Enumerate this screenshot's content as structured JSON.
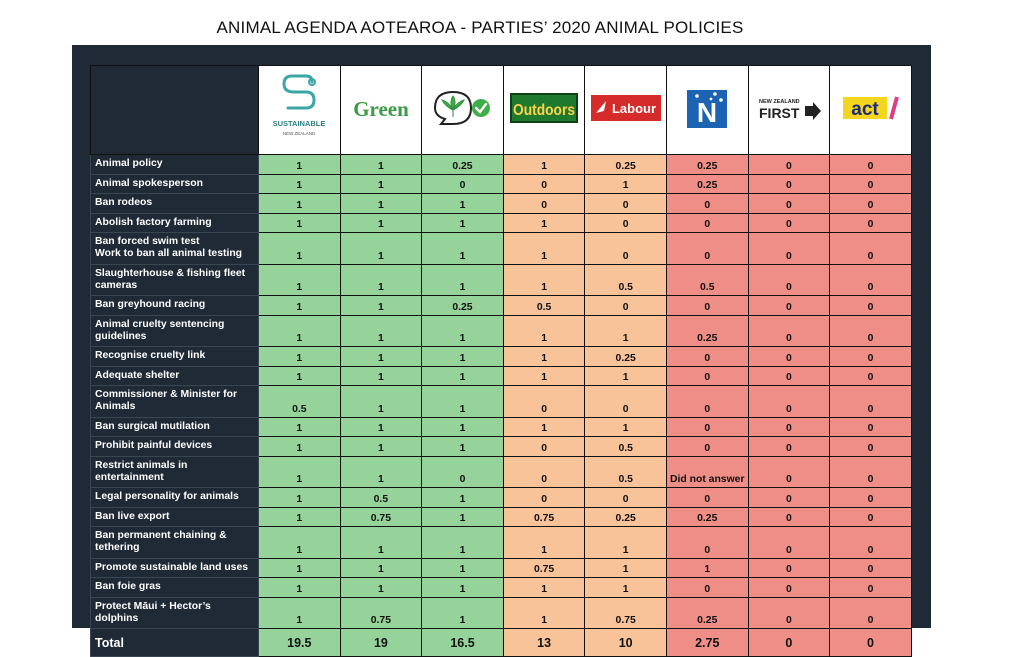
{
  "title": "ANIMAL AGENDA AOTEAROA - PARTIES’ 2020 ANIMAL POLICIES",
  "colors": {
    "background": "#1f2a36",
    "high": "#95d39a",
    "mid": "#f8c399",
    "low": "#ef8e86"
  },
  "parties": [
    {
      "logo": "sustainable-nz-logo",
      "text": "SUSTAINABLE",
      "sub": "NEW ZEALAND",
      "band": "g"
    },
    {
      "logo": "green-logo",
      "text": "Green",
      "band": "g"
    },
    {
      "logo": "cannabis-logo",
      "text": "",
      "band": "g"
    },
    {
      "logo": "outdoors-logo",
      "text": "Outdoors",
      "band": "o"
    },
    {
      "logo": "labour-logo",
      "text": "Labour",
      "band": "o"
    },
    {
      "logo": "national-logo",
      "text": "N",
      "band": "r"
    },
    {
      "logo": "nz-first-logo",
      "text": "FIRST",
      "sub": "NEW ZEALAND",
      "band": "r"
    },
    {
      "logo": "act-logo",
      "text": "act",
      "band": "r"
    }
  ],
  "chart_data": {
    "type": "table",
    "title": "ANIMAL AGENDA AOTEAROA - PARTIES’ 2020 ANIMAL POLICIES",
    "rows": [
      {
        "label": "Animal policy",
        "values": [
          "1",
          "1",
          "0.25",
          "1",
          "0.25",
          "0.25",
          "0",
          "0"
        ]
      },
      {
        "label": "Animal spokesperson",
        "values": [
          "1",
          "1",
          "0",
          "0",
          "1",
          "0.25",
          "0",
          "0"
        ]
      },
      {
        "label": "Ban rodeos",
        "values": [
          "1",
          "1",
          "1",
          "0",
          "0",
          "0",
          "0",
          "0"
        ]
      },
      {
        "label": "Abolish factory farming",
        "values": [
          "1",
          "1",
          "1",
          "1",
          "0",
          "0",
          "0",
          "0"
        ]
      },
      {
        "label": "Ban forced swim test\nWork to ban all animal testing",
        "values": [
          "1",
          "1",
          "1",
          "1",
          "0",
          "0",
          "0",
          "0"
        ]
      },
      {
        "label": "Slaughterhouse & fishing fleet\ncameras",
        "values": [
          "1",
          "1",
          "1",
          "1",
          "0.5",
          "0.5",
          "0",
          "0"
        ]
      },
      {
        "label": "Ban greyhound racing",
        "values": [
          "1",
          "1",
          "0.25",
          "0.5",
          "0",
          "0",
          "0",
          "0"
        ]
      },
      {
        "label": "Animal cruelty sentencing\nguidelines",
        "values": [
          "1",
          "1",
          "1",
          "1",
          "1",
          "0.25",
          "0",
          "0"
        ]
      },
      {
        "label": "Recognise cruelty link",
        "values": [
          "1",
          "1",
          "1",
          "1",
          "0.25",
          "0",
          "0",
          "0"
        ]
      },
      {
        "label": "Adequate shelter",
        "values": [
          "1",
          "1",
          "1",
          "1",
          "1",
          "0",
          "0",
          "0"
        ]
      },
      {
        "label": "Commissioner & Minister for\nAnimals",
        "values": [
          "0.5",
          "1",
          "1",
          "0",
          "0",
          "0",
          "0",
          "0"
        ]
      },
      {
        "label": "Ban surgical mutilation",
        "values": [
          "1",
          "1",
          "1",
          "1",
          "1",
          "0",
          "0",
          "0"
        ]
      },
      {
        "label": "Prohibit painful devices",
        "values": [
          "1",
          "1",
          "1",
          "0",
          "0.5",
          "0",
          "0",
          "0"
        ]
      },
      {
        "label": "Restrict animals in\nentertainment",
        "values": [
          "1",
          "1",
          "0",
          "0",
          "0.5",
          "Did not answer",
          "0",
          "0"
        ]
      },
      {
        "label": "Legal personality for animals",
        "values": [
          "1",
          "0.5",
          "1",
          "0",
          "0",
          "0",
          "0",
          "0"
        ]
      },
      {
        "label": "Ban live export",
        "values": [
          "1",
          "0.75",
          "1",
          "0.75",
          "0.25",
          "0.25",
          "0",
          "0"
        ]
      },
      {
        "label": "Ban permanent chaining &\ntethering",
        "values": [
          "1",
          "1",
          "1",
          "1",
          "1",
          "0",
          "0",
          "0"
        ]
      },
      {
        "label": "Promote sustainable land uses",
        "values": [
          "1",
          "1",
          "1",
          "0.75",
          "1",
          "1",
          "0",
          "0"
        ]
      },
      {
        "label": "Ban foie gras",
        "values": [
          "1",
          "1",
          "1",
          "1",
          "1",
          "0",
          "0",
          "0"
        ]
      },
      {
        "label": "Protect Māui + Hector’s\ndolphins",
        "values": [
          "1",
          "0.75",
          "1",
          "1",
          "0.75",
          "0.25",
          "0",
          "0"
        ]
      }
    ],
    "total": {
      "label": "Total",
      "values": [
        "19.5",
        "19",
        "16.5",
        "13",
        "10",
        "2.75",
        "0",
        "0"
      ]
    }
  }
}
